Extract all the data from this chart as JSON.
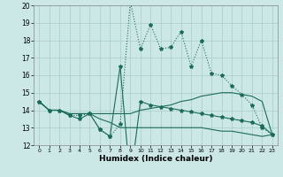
{
  "xlabel": "Humidex (Indice chaleur)",
  "xlim": [
    -0.5,
    23.5
  ],
  "ylim": [
    12,
    20
  ],
  "yticks": [
    12,
    13,
    14,
    15,
    16,
    17,
    18,
    19,
    20
  ],
  "xticks": [
    0,
    1,
    2,
    3,
    4,
    5,
    6,
    7,
    8,
    9,
    10,
    11,
    12,
    13,
    14,
    15,
    16,
    17,
    18,
    19,
    20,
    21,
    22,
    23
  ],
  "bg_color": "#cce8e6",
  "grid_color": "#aaccca",
  "line_color": "#1a6b5a",
  "line1_x": [
    0,
    1,
    2,
    3,
    4,
    5,
    6,
    7,
    8,
    9,
    10,
    11,
    12,
    13,
    14,
    15,
    16,
    17,
    18,
    19,
    20,
    21,
    22,
    23
  ],
  "line1_y": [
    14.5,
    14.0,
    14.0,
    13.8,
    13.8,
    13.8,
    13.8,
    13.8,
    13.8,
    13.8,
    14.0,
    14.1,
    14.2,
    14.3,
    14.5,
    14.6,
    14.8,
    14.9,
    15.0,
    15.0,
    14.9,
    14.8,
    14.5,
    12.6
  ],
  "line2_x": [
    0,
    1,
    2,
    3,
    4,
    5,
    6,
    7,
    8,
    9,
    10,
    11,
    12,
    13,
    14,
    15,
    16,
    17,
    18,
    19,
    20,
    21,
    22,
    23
  ],
  "line2_y": [
    14.5,
    14.0,
    14.0,
    13.8,
    13.8,
    13.8,
    13.5,
    13.3,
    13.0,
    13.0,
    13.0,
    13.0,
    13.0,
    13.0,
    13.0,
    13.0,
    13.0,
    12.9,
    12.8,
    12.8,
    12.7,
    12.6,
    12.5,
    12.6
  ],
  "line3_x": [
    0,
    1,
    2,
    3,
    4,
    5,
    6,
    7,
    8,
    9,
    10,
    11,
    12,
    13,
    14,
    15,
    16,
    17,
    18,
    19,
    20,
    21,
    22,
    23
  ],
  "line3_y": [
    14.5,
    14.0,
    14.0,
    13.7,
    13.7,
    13.8,
    12.9,
    12.5,
    13.2,
    20.2,
    17.5,
    18.9,
    17.5,
    17.6,
    18.5,
    16.5,
    18.0,
    16.1,
    16.0,
    15.4,
    14.9,
    14.3,
    13.0,
    12.6
  ],
  "line4_x": [
    0,
    1,
    2,
    3,
    4,
    5,
    6,
    7,
    8,
    9,
    10,
    11,
    12,
    13,
    14,
    15,
    16,
    17,
    18,
    19,
    20,
    21,
    22,
    23
  ],
  "line4_y": [
    14.5,
    14.0,
    14.0,
    13.7,
    13.5,
    13.8,
    12.9,
    12.5,
    16.5,
    9.9,
    14.5,
    14.3,
    14.2,
    14.1,
    14.0,
    13.9,
    13.8,
    13.7,
    13.6,
    13.5,
    13.4,
    13.3,
    13.1,
    12.6
  ]
}
